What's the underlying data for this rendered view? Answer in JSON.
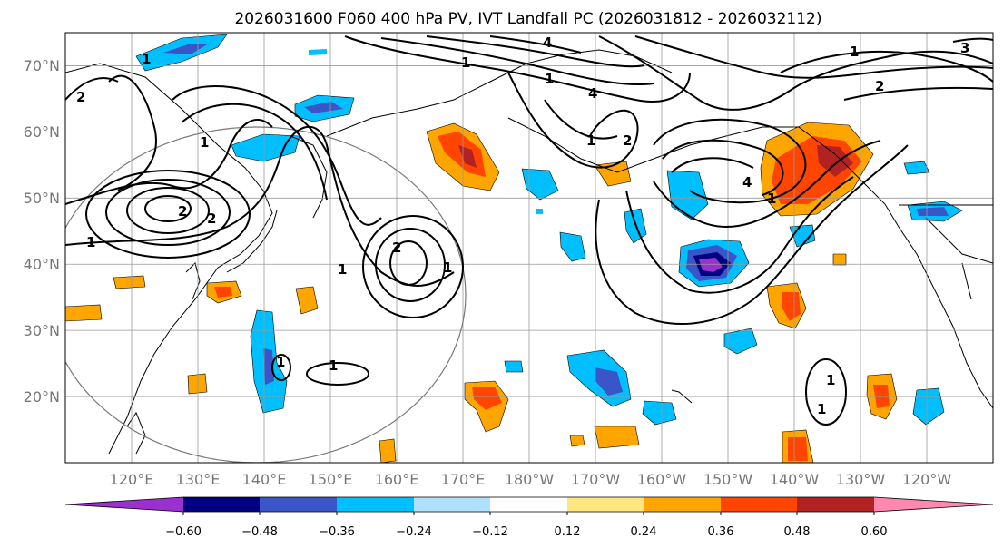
{
  "title": "2026031600 F060 400 hPa PV, IVT Landfall PC (2026031812 - 2026032112)",
  "map": {
    "lon_range": [
      110,
      250
    ],
    "lat_range": [
      10,
      75
    ],
    "lat_labels": [
      "20°N",
      "30°N",
      "40°N",
      "50°N",
      "60°N",
      "70°N"
    ],
    "lon_labels": [
      "120°E",
      "130°E",
      "140°E",
      "150°E",
      "160°E",
      "170°E",
      "180°W",
      "170°W",
      "160°W",
      "150°W",
      "140°W",
      "130°W",
      "120°W"
    ],
    "gridlines": true
  },
  "colorbar": {
    "ticks": [
      "−0.60",
      "−0.48",
      "−0.36",
      "−0.24",
      "−0.12",
      "0.12",
      "0.24",
      "0.36",
      "0.48",
      "0.60"
    ],
    "colors": [
      "#9b30d0",
      "#000080",
      "#3a55c8",
      "#00bfff",
      "#b0e0ff",
      "#ffffff",
      "#ffe680",
      "#ffa500",
      "#ff4500",
      "#b22222",
      "#ff88b0"
    ]
  },
  "contour_labels": [
    "1",
    "2",
    "1",
    "2",
    "1",
    "2",
    "1",
    "1",
    "4",
    "1",
    "4",
    "1",
    "2",
    "1",
    "4",
    "1",
    "2",
    "3",
    "1",
    "1",
    "1",
    "1",
    "1",
    "2"
  ]
}
